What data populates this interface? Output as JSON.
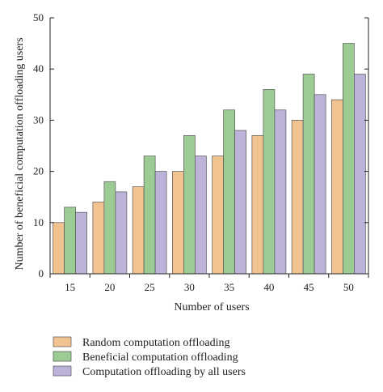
{
  "chart_data": {
    "type": "bar",
    "xlabel": "Number of users",
    "ylabel": "Number of beneficial computation offloading users",
    "ylim": [
      0,
      50
    ],
    "yticks": [
      "0",
      "10",
      "20",
      "30",
      "40",
      "50"
    ],
    "categories": [
      "15",
      "20",
      "25",
      "30",
      "35",
      "40",
      "45",
      "50"
    ],
    "series": [
      {
        "name": "Random computation offloading",
        "color": "#f0c391",
        "values": [
          10,
          14,
          17,
          20,
          23,
          27,
          30,
          34
        ]
      },
      {
        "name": "Beneficial computation offloading",
        "color": "#9ccc94",
        "values": [
          13,
          18,
          23,
          27,
          32,
          36,
          39,
          45
        ]
      },
      {
        "name": "Computation offloading by all users",
        "color": "#bcb2da",
        "values": [
          12,
          16,
          20,
          23,
          28,
          32,
          35,
          39
        ]
      }
    ],
    "grid": false,
    "legend_position": "bottom"
  }
}
